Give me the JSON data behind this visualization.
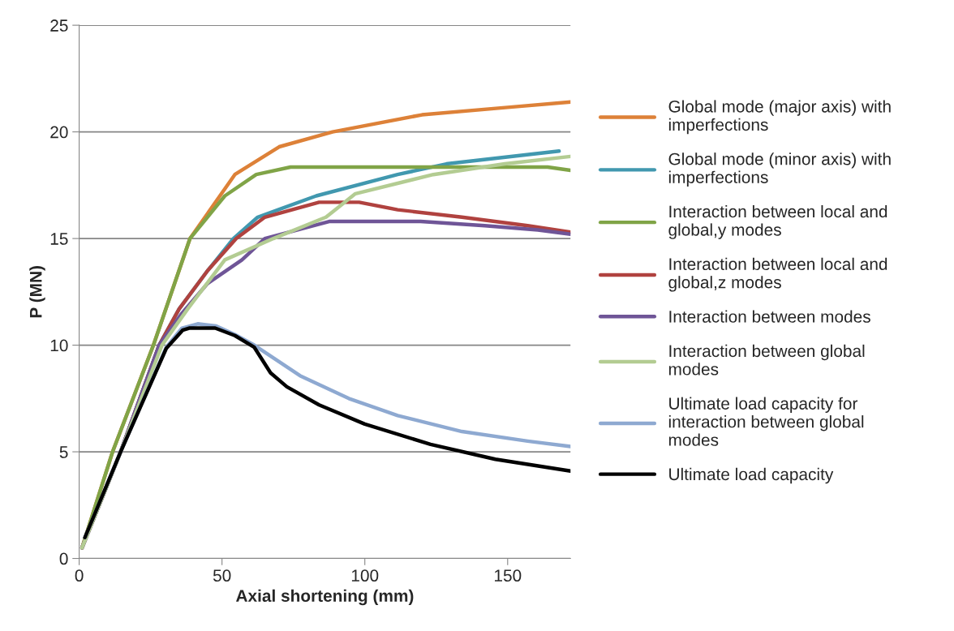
{
  "chart_data": {
    "type": "line",
    "xlabel": "Axial shortening (mm)",
    "ylabel": "P (MN)",
    "xlim": [
      0,
      172
    ],
    "xticks": [
      0,
      50,
      100,
      150
    ],
    "ylim": [
      0,
      25
    ],
    "yticks": [
      0,
      5,
      10,
      15,
      20,
      25
    ],
    "grid": "y",
    "legend": "right",
    "marker": "none",
    "line_style": "solid",
    "series": [
      {
        "name": "Global mode (major axis) with\nimperfections",
        "color": "#dd8138",
        "x": [
          1,
          11.7,
          26,
          38.8,
          54.5,
          70,
          88.7,
          120,
          150,
          172
        ],
        "values": [
          0.5,
          5,
          10,
          15,
          18,
          19.3,
          20,
          20.8,
          21.15,
          21.4
        ]
      },
      {
        "name": "Global mode (minor axis) with\nimperfections",
        "color": "#4198af",
        "x": [
          1,
          14.5,
          28,
          35,
          45,
          54,
          62.5,
          83,
          111.5,
          128.6,
          168
        ],
        "values": [
          0.5,
          5,
          10,
          11.7,
          13.5,
          15,
          16,
          17,
          18,
          18.5,
          19.1
        ]
      },
      {
        "name": "Interaction between local and\nglobal,y modes",
        "color": "#80a447",
        "x": [
          1,
          11.7,
          26,
          38.8,
          51,
          62,
          74,
          164,
          172
        ],
        "values": [
          0.5,
          5,
          10,
          15,
          17,
          18,
          18.35,
          18.35,
          18.2
        ]
      },
      {
        "name": "Interaction between local and\nglobal,z modes",
        "color": "#b0423f",
        "x": [
          1,
          14.5,
          28,
          35,
          45,
          55,
          65,
          84,
          98,
          111.5,
          134,
          157,
          172
        ],
        "values": [
          0.5,
          5,
          10,
          11.7,
          13.5,
          15,
          16,
          16.7,
          16.7,
          16.35,
          16,
          15.6,
          15.3
        ]
      },
      {
        "name": "Interaction between modes",
        "color": "#6f5597",
        "x": [
          1,
          14.5,
          28,
          36,
          45,
          57,
          65,
          87.5,
          119.5,
          142,
          160.6,
          172
        ],
        "values": [
          0.5,
          5,
          10,
          11.5,
          12.9,
          14,
          15,
          15.8,
          15.8,
          15.6,
          15.4,
          15.2
        ]
      },
      {
        "name": "Interaction between global\nmodes",
        "color": "#b3cc92",
        "x": [
          1,
          14.5,
          29,
          38,
          51,
          68,
          86.4,
          96.7,
          124,
          149,
          172
        ],
        "values": [
          0.5,
          5,
          10,
          11.7,
          14,
          15,
          16,
          17.1,
          18,
          18.5,
          18.85
        ]
      },
      {
        "name": "Ultimate load capacity for\ninteraction between global\nmodes",
        "color": "#8ea9d1",
        "x": [
          2,
          14.5,
          30.5,
          36,
          41.5,
          48,
          54.5,
          61.3,
          77.3,
          94.4,
          111.5,
          134,
          157,
          172
        ],
        "values": [
          0.98,
          5,
          9.9,
          10.8,
          11.0,
          10.9,
          10.5,
          10,
          8.57,
          7.5,
          6.7,
          5.95,
          5.5,
          5.25
        ]
      },
      {
        "name": "Ultimate load capacity",
        "color": "#000000",
        "x": [
          2,
          14.5,
          30.5,
          36.2,
          38.5,
          47.6,
          54.5,
          61.3,
          67,
          72.7,
          84,
          100,
          123,
          145.7,
          172
        ],
        "values": [
          0.98,
          5,
          9.85,
          10.7,
          10.8,
          10.8,
          10.45,
          9.9,
          8.7,
          8.05,
          7.2,
          6.3,
          5.35,
          4.65,
          4.1
        ]
      }
    ]
  }
}
